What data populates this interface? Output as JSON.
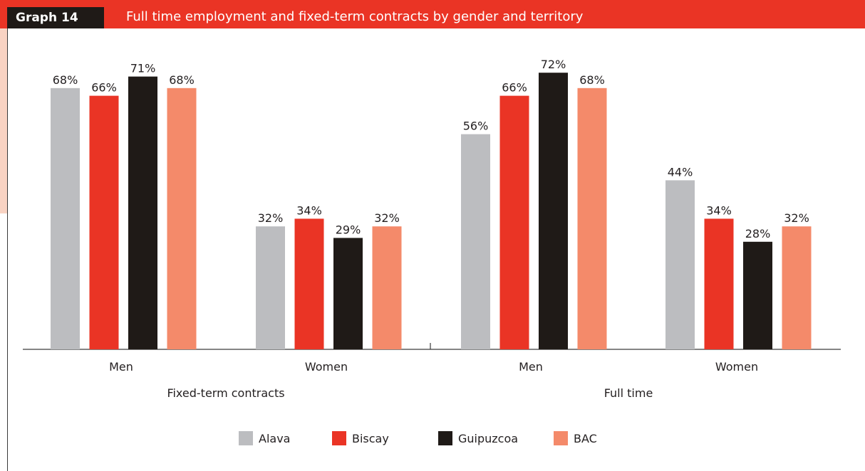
{
  "header": {
    "label": "Graph 14",
    "title": "Full time employment and fixed-term contracts by gender and territory"
  },
  "colors": {
    "header_bg": "#ea3425",
    "label_bg": "#1f1a17"
  },
  "chart_data": {
    "type": "bar",
    "title": "Full time employment and fixed-term contracts by gender and territory",
    "xlabel": "",
    "ylabel": "",
    "grid": false,
    "legend_position": "bottom",
    "groups": [
      {
        "label": "Fixed-term contracts",
        "categories": [
          "Men",
          "Women"
        ]
      },
      {
        "label": "Full time",
        "categories": [
          "Men",
          "Women"
        ]
      }
    ],
    "categories": [
      "Men",
      "Women",
      "Men",
      "Women"
    ],
    "series": [
      {
        "name": "Alava",
        "color": "#bcbdc0",
        "values": [
          68,
          32,
          56,
          44
        ]
      },
      {
        "name": "Biscay",
        "color": "#ea3425",
        "values": [
          66,
          34,
          66,
          34
        ]
      },
      {
        "name": "Guipuzcoa",
        "color": "#1f1a17",
        "values": [
          71,
          29,
          72,
          28
        ]
      },
      {
        "name": "BAC",
        "color": "#f48a6a",
        "values": [
          68,
          32,
          68,
          32
        ]
      }
    ],
    "value_suffix": "%",
    "ylim": [
      0,
      80
    ]
  }
}
